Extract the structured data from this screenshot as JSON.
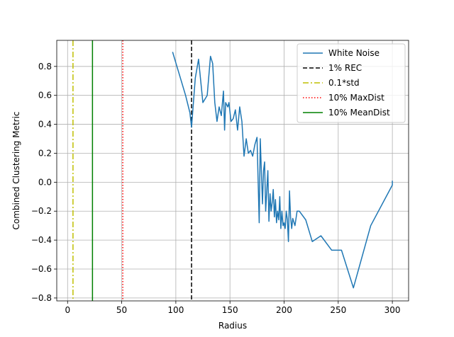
{
  "chart_data": {
    "type": "line",
    "xlabel": "Radius",
    "ylabel": "Combined Clustering Metric",
    "xlim": [
      -10,
      315
    ],
    "ylim": [
      -0.82,
      0.98
    ],
    "xticks": [
      0,
      50,
      100,
      150,
      200,
      250,
      300
    ],
    "yticks": [
      -0.8,
      -0.6,
      -0.4,
      -0.2,
      0.0,
      0.2,
      0.4,
      0.6,
      0.8
    ],
    "ytick_labels": [
      "−0.8",
      "−0.6",
      "−0.4",
      "−0.2",
      "0.0",
      "0.2",
      "0.4",
      "0.6",
      "0.8"
    ],
    "grid": true,
    "legend_position": "top-right",
    "series": [
      {
        "name": "White Noise",
        "color": "#1f77b4",
        "style": "solid",
        "x": [
          97,
          101,
          105,
          109,
          113,
          114.5,
          118,
          121,
          125,
          129,
          132,
          134,
          136,
          138,
          140,
          142,
          144,
          145,
          146,
          148,
          149,
          151,
          153,
          155,
          157,
          159,
          161,
          163,
          165,
          167,
          169,
          171,
          173,
          175,
          177,
          178,
          179,
          180,
          181,
          182,
          183,
          185,
          186,
          187,
          188,
          189,
          190,
          191,
          192,
          193,
          194,
          195,
          196,
          197,
          198,
          199,
          200,
          201,
          202,
          203,
          204,
          205,
          206,
          207,
          208,
          210,
          212,
          214,
          220,
          226,
          234,
          244,
          253,
          264,
          280,
          300,
          300
        ],
        "y": [
          0.9,
          0.8,
          0.7,
          0.6,
          0.48,
          0.38,
          0.72,
          0.85,
          0.55,
          0.6,
          0.87,
          0.82,
          0.55,
          0.42,
          0.52,
          0.46,
          0.63,
          0.36,
          0.55,
          0.52,
          0.55,
          0.42,
          0.44,
          0.5,
          0.36,
          0.52,
          0.42,
          0.18,
          0.3,
          0.2,
          0.22,
          0.18,
          0.26,
          0.31,
          -0.28,
          0.3,
          0.08,
          -0.15,
          0.08,
          0.14,
          -0.2,
          0.08,
          -0.27,
          -0.08,
          -0.2,
          -0.14,
          -0.05,
          -0.24,
          -0.12,
          -0.28,
          -0.2,
          -0.26,
          -0.1,
          -0.32,
          -0.2,
          -0.3,
          -0.28,
          -0.32,
          -0.2,
          -0.26,
          -0.41,
          -0.06,
          -0.24,
          -0.32,
          -0.25,
          -0.3,
          -0.2,
          -0.2,
          -0.26,
          -0.41,
          -0.37,
          -0.47,
          -0.47,
          -0.73,
          -0.3,
          -0.02,
          0.01
        ]
      }
    ],
    "vlines": [
      {
        "name": "1% REC",
        "x": 114.5,
        "color": "#000000",
        "style": "dashed"
      },
      {
        "name": "0.1*std",
        "x": 5,
        "color": "#bfbf00",
        "style": "dashdot"
      },
      {
        "name": "10% MaxDist",
        "x": 51,
        "color": "#ff0000",
        "style": "dotted"
      },
      {
        "name": "10% MeanDist",
        "x": 23,
        "color": "#008000",
        "style": "solid"
      }
    ]
  }
}
